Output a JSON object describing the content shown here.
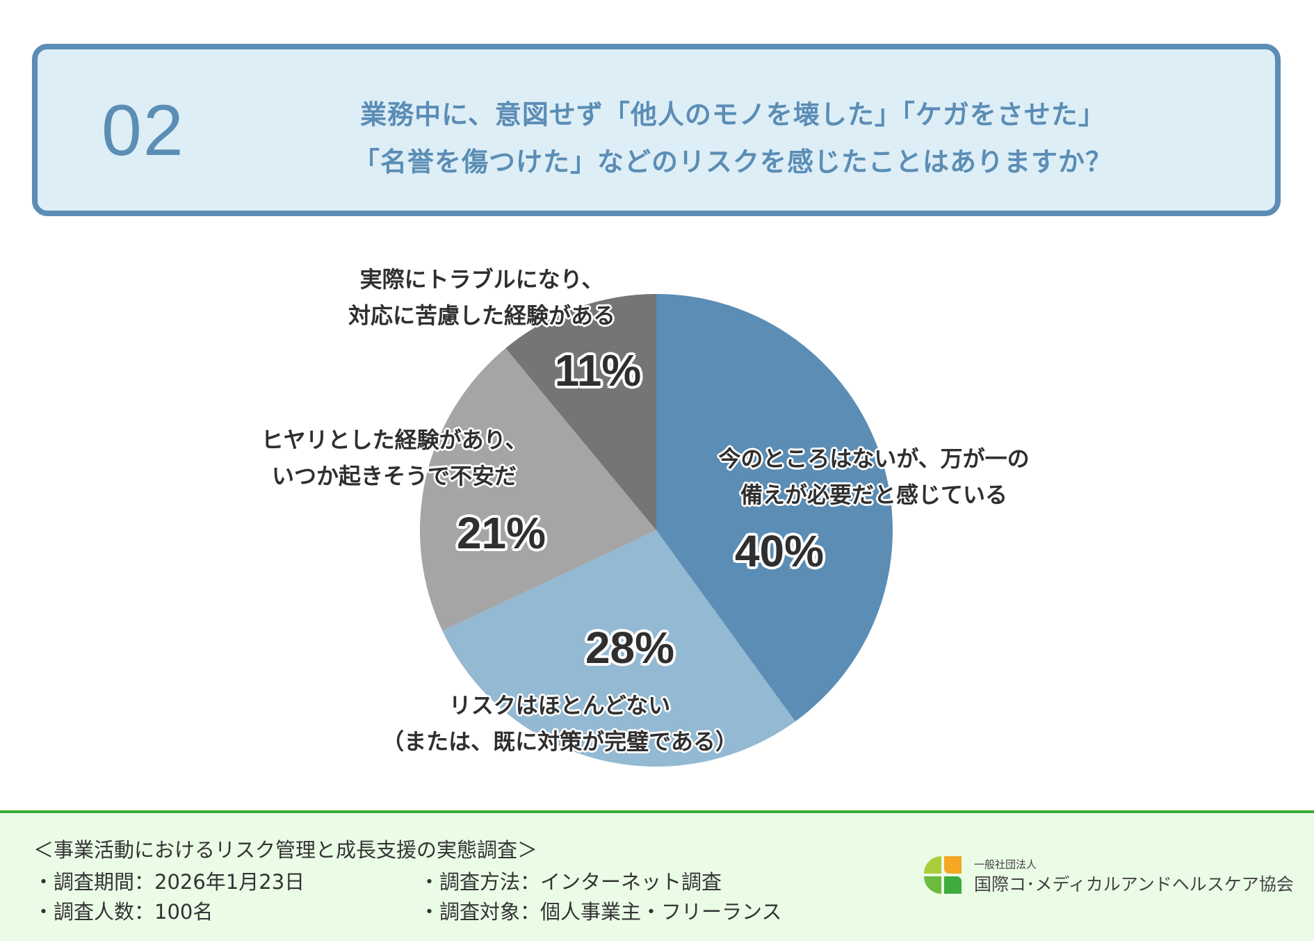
{
  "question": {
    "number": "02",
    "line1": "業務中に、意図せず「他人のモノを壊した」「ケガをさせた」",
    "line2": "「名誉を傷つけた」などのリスクを感じたことはありますか？"
  },
  "chart_data": {
    "type": "pie",
    "start": "top",
    "direction": "clockwise",
    "slices": [
      {
        "label_line1": "今のところはないが、万が一の",
        "label_line2": "備えが必要だと感じている",
        "value": 40,
        "display": "40%",
        "color": "#5b8db5"
      },
      {
        "label_line1": "リスクはほとんどない",
        "label_line2": "（または、既に対策が完璧である）",
        "value": 28,
        "display": "28%",
        "color": "#93b9d3"
      },
      {
        "label_line1": "ヒヤリとした経験があり、",
        "label_line2": "いつか起きそうで不安だ",
        "value": 21,
        "display": "21%",
        "color": "#a5a5a5"
      },
      {
        "label_line1": "実際にトラブルになり、",
        "label_line2": "対応に苦慮した経験がある",
        "value": 11,
        "display": "11%",
        "color": "#757575"
      }
    ]
  },
  "footer": {
    "survey_title": "＜事業活動におけるリスク管理と成長支援の実態調査＞",
    "period": "・調査期間：2026年1月23日",
    "method": "・調査方法：インターネット調査",
    "count": "・調査人数：100名",
    "target": "・調査対象：個人事業主・フリーランス"
  },
  "logo": {
    "small": "一般社団法人",
    "main": "国際コ･メディカルアンドヘルスケア協会"
  }
}
